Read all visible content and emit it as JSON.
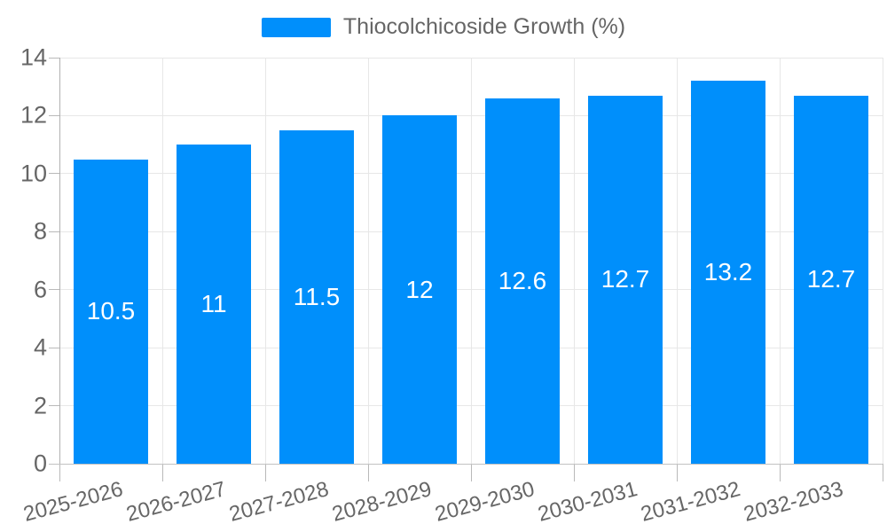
{
  "chart_data": {
    "type": "bar",
    "title": "Thiocolchicoside Growth (%)",
    "legend": {
      "position": "top",
      "label": "Thiocolchicoside Growth (%)"
    },
    "categories": [
      "2025-2026",
      "2026-2027",
      "2027-2028",
      "2028-2029",
      "2029-2030",
      "2030-2031",
      "2031-2032",
      "2032-2033"
    ],
    "values": [
      10.5,
      11,
      11.5,
      12,
      12.6,
      12.7,
      13.2,
      12.7
    ],
    "value_labels": [
      "10.5",
      "11",
      "11.5",
      "12",
      "12.6",
      "12.7",
      "13.2",
      "12.7"
    ],
    "xlabel": "",
    "ylabel": "",
    "ylim": [
      0,
      14
    ],
    "ytick_step": 2,
    "yticks": [
      "0",
      "2",
      "4",
      "6",
      "8",
      "10",
      "12",
      "14"
    ],
    "grid": true,
    "colors": {
      "bar": "#008FFB",
      "bar_label_text": "#ffffff",
      "axis_text": "#666666",
      "gridline": "#e7e7e7",
      "axis_line": "#b1b1b1"
    }
  }
}
